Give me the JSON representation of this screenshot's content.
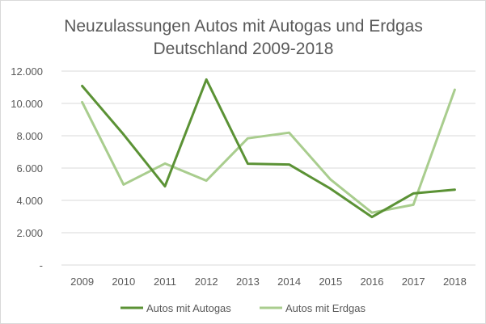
{
  "chart_data": {
    "type": "line",
    "title": "Neuzulassungen Autos mit Autogas und Erdgas",
    "subtitle": "Deutschland 2009-2018",
    "xlabel": "",
    "ylabel": "",
    "categories": [
      "2009",
      "2010",
      "2011",
      "2012",
      "2013",
      "2014",
      "2015",
      "2016",
      "2017",
      "2018"
    ],
    "y_tick_labels": [
      "-",
      "2.000",
      "4.000",
      "6.000",
      "8.000",
      "10.000",
      "12.000"
    ],
    "ylim": [
      0,
      12000
    ],
    "grid": true,
    "legend_position": "bottom",
    "series": [
      {
        "name": "Autos mit Autogas",
        "color": "#5b9235",
        "values": [
          11080,
          8080,
          4870,
          11480,
          6270,
          6220,
          4720,
          2970,
          4430,
          4660
        ]
      },
      {
        "name": "Autos mit Erdgas",
        "color": "#a9cd8e",
        "values": [
          10080,
          4980,
          6280,
          5220,
          7840,
          8190,
          5290,
          3240,
          3730,
          10850
        ]
      }
    ]
  }
}
